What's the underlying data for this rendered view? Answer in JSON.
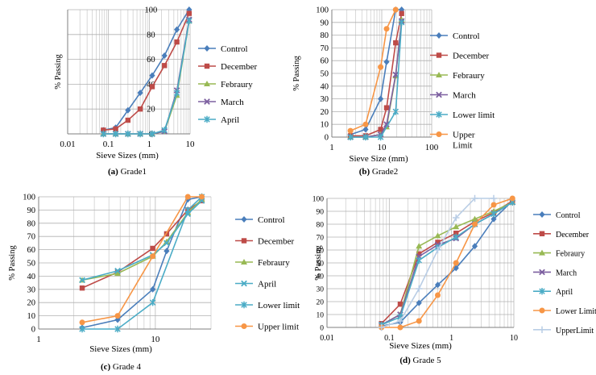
{
  "figure": {
    "title": ""
  },
  "colors": {
    "Control": "#4a7ebb",
    "December": "#be4b48",
    "Febraury": "#98b954",
    "March": "#7d60a0",
    "April": "#4bacc6",
    "Lower limit": "#4bacc6",
    "Upper limit": "#f79646",
    "Lower Limit": "#f79646",
    "UpperLimit": "#b9cde5"
  },
  "chart_data": [
    {
      "type": "line",
      "subtype": "scatter-line",
      "caption": "(a) Grade1",
      "ylabel": "% Passing",
      "xlabel": "Sieve Sizes (mm)",
      "xscale": "log",
      "xlim": [
        0.01,
        10
      ],
      "ylim": [
        0,
        100
      ],
      "xticks": [
        0.01,
        0.1,
        1,
        10
      ],
      "xtick_labels": [
        "0.01",
        "0.1",
        "1",
        "10"
      ],
      "yticks": [
        0,
        20,
        40,
        60,
        80,
        100
      ],
      "ytick_labels": [
        "0",
        "20",
        "40",
        "60",
        "80",
        "100"
      ],
      "legend": "right",
      "grid": true,
      "series": [
        {
          "name": "Control",
          "marker": "diamond",
          "x": [
            0.075,
            0.15,
            0.3,
            0.6,
            1.18,
            2.36,
            4.75,
            9.5
          ],
          "y": [
            3,
            5,
            19,
            33,
            47,
            63,
            84,
            100
          ]
        },
        {
          "name": "December",
          "marker": "square",
          "x": [
            0.075,
            0.15,
            0.3,
            0.6,
            1.18,
            2.36,
            4.75,
            9.5
          ],
          "y": [
            3,
            4,
            11,
            20,
            38,
            55,
            74,
            97
          ]
        },
        {
          "name": "Febraury",
          "marker": "triangle",
          "x": [
            0.075,
            0.15,
            0.3,
            0.6,
            1.18,
            2.36,
            4.75,
            9.5
          ],
          "y": [
            0,
            0,
            0,
            0,
            0,
            2,
            31,
            91
          ]
        },
        {
          "name": "March",
          "marker": "xcross",
          "x": [
            0.075,
            0.15,
            0.3,
            0.6,
            1.18,
            2.36,
            4.75,
            9.5
          ],
          "y": [
            0,
            0,
            0,
            0,
            0,
            2,
            35,
            92
          ]
        },
        {
          "name": "April",
          "marker": "xstar",
          "x": [
            0.075,
            0.15,
            0.3,
            0.6,
            1.18,
            2.36,
            4.75,
            9.5
          ],
          "y": [
            0,
            0,
            0,
            0,
            0,
            3,
            33,
            91
          ]
        }
      ]
    },
    {
      "type": "line",
      "subtype": "scatter-line",
      "caption": "(b) Grade2",
      "ylabel": "% Passing",
      "xlabel": "Sieve Size (mm)",
      "xscale": "log",
      "xlim": [
        1,
        100
      ],
      "ylim": [
        0,
        100
      ],
      "xticks": [
        1,
        10,
        100
      ],
      "xtick_labels": [
        "1",
        "10",
        "100"
      ],
      "yticks": [
        0,
        10,
        20,
        30,
        40,
        50,
        60,
        70,
        80,
        90,
        100
      ],
      "ytick_labels": [
        "0",
        "10",
        "20",
        "30",
        "40",
        "50",
        "60",
        "70",
        "80",
        "90",
        "100"
      ],
      "legend": "right",
      "grid": true,
      "series": [
        {
          "name": "Control",
          "marker": "diamond",
          "x": [
            2.36,
            4.75,
            9.5,
            12.5,
            19,
            25
          ],
          "y": [
            2,
            6,
            30,
            59,
            100,
            100
          ]
        },
        {
          "name": "December",
          "marker": "square",
          "x": [
            2.36,
            4.75,
            9.5,
            12.5,
            19,
            25
          ],
          "y": [
            1,
            1,
            6,
            23,
            74,
            97
          ]
        },
        {
          "name": "Febraury",
          "marker": "triangle",
          "x": [
            2.36,
            4.75,
            9.5,
            12.5,
            19,
            25
          ],
          "y": [
            0,
            0,
            2,
            8,
            48,
            92
          ]
        },
        {
          "name": "March",
          "marker": "xcross",
          "x": [
            2.36,
            4.75,
            9.5,
            12.5,
            19,
            25
          ],
          "y": [
            0,
            0,
            2,
            10,
            49,
            91
          ]
        },
        {
          "name": "Lower limit",
          "marker": "xstar",
          "x": [
            2.36,
            4.75,
            9.5,
            19,
            25
          ],
          "y": [
            0,
            0,
            0,
            20,
            90
          ]
        },
        {
          "name": "Upper limit",
          "marker": "circle",
          "x": [
            2.36,
            4.75,
            9.5,
            12.5,
            19
          ],
          "y": [
            5,
            10,
            55,
            85,
            100
          ]
        }
      ],
      "legend_labels": [
        "Control",
        "December",
        "Febraury",
        "March",
        "Lower limit",
        "Upper\nLimit"
      ]
    },
    {
      "type": "line",
      "subtype": "scatter-line",
      "caption": "(c) Grade 4",
      "ylabel": "% Passing",
      "xlabel": "Sieve Sizes (mm)",
      "xscale": "log",
      "xlim": [
        1,
        30
      ],
      "ylim": [
        0,
        100
      ],
      "xticks": [
        1,
        10
      ],
      "xtick_labels": [
        "1",
        "10"
      ],
      "yticks": [
        0,
        10,
        20,
        30,
        40,
        50,
        60,
        70,
        80,
        90,
        100
      ],
      "ytick_labels": [
        "0",
        "10",
        "20",
        "30",
        "40",
        "50",
        "60",
        "70",
        "80",
        "90",
        "100"
      ],
      "legend": "right",
      "grid": true,
      "series": [
        {
          "name": "Control",
          "marker": "diamond",
          "x": [
            2.36,
            4.75,
            9.5,
            12.5,
            19,
            25
          ],
          "y": [
            1,
            7,
            30,
            59,
            98,
            100
          ]
        },
        {
          "name": "December",
          "marker": "square",
          "x": [
            2.36,
            4.75,
            9.5,
            12.5,
            19,
            25
          ],
          "y": [
            31,
            43,
            61,
            72,
            90,
            97
          ]
        },
        {
          "name": "Febraury",
          "marker": "triangle",
          "x": [
            2.36,
            4.75,
            9.5,
            12.5,
            19,
            25
          ],
          "y": [
            37,
            42,
            55,
            66,
            88,
            98
          ]
        },
        {
          "name": "April",
          "marker": "xcross",
          "x": [
            2.36,
            4.75,
            9.5,
            12.5,
            19,
            25
          ],
          "y": [
            37,
            44,
            56,
            65,
            87,
            97
          ]
        },
        {
          "name": "Lower limit",
          "marker": "xstar",
          "x": [
            2.36,
            4.75,
            9.5,
            19,
            25
          ],
          "y": [
            0,
            0,
            20,
            90,
            100
          ]
        },
        {
          "name": "Upper limit",
          "marker": "circle",
          "x": [
            2.36,
            4.75,
            9.5,
            19,
            25
          ],
          "y": [
            5,
            10,
            55,
            100,
            100
          ]
        }
      ]
    },
    {
      "type": "line",
      "subtype": "scatter-line",
      "caption": "(d) Grade 5",
      "ylabel": "% Passing",
      "xlabel": "Sieve Sizes (mm)",
      "xscale": "log",
      "xlim": [
        0.01,
        10
      ],
      "ylim": [
        0,
        100
      ],
      "xticks": [
        0.01,
        0.1,
        1,
        10
      ],
      "xtick_labels": [
        "0.01",
        "0.1",
        "1",
        "10"
      ],
      "yticks": [
        0,
        10,
        20,
        30,
        40,
        50,
        60,
        70,
        80,
        90,
        100
      ],
      "ytick_labels": [
        "0",
        "10",
        "20",
        "30",
        "40",
        "50",
        "60",
        "70",
        "80",
        "90",
        "100"
      ],
      "legend": "right",
      "grid": true,
      "series": [
        {
          "name": "Control",
          "marker": "diamond",
          "x": [
            0.075,
            0.15,
            0.3,
            0.6,
            1.18,
            2.36,
            4.75,
            9.5
          ],
          "y": [
            1,
            4,
            19,
            33,
            46,
            63,
            84,
            98
          ]
        },
        {
          "name": "December",
          "marker": "square",
          "x": [
            0.075,
            0.15,
            0.3,
            0.6,
            1.18,
            2.36,
            4.75,
            9.5
          ],
          "y": [
            3,
            18,
            57,
            66,
            73,
            82,
            89,
            98
          ]
        },
        {
          "name": "Febraury",
          "marker": "triangle",
          "x": [
            0.075,
            0.15,
            0.3,
            0.6,
            1.18,
            2.36,
            4.75,
            9.5
          ],
          "y": [
            2,
            10,
            63,
            71,
            78,
            84,
            90,
            97
          ]
        },
        {
          "name": "March",
          "marker": "xcross",
          "x": [
            0.075,
            0.15,
            0.3,
            0.6,
            1.18,
            2.36,
            4.75,
            9.5
          ],
          "y": [
            2,
            10,
            55,
            64,
            69,
            80,
            88,
            97
          ]
        },
        {
          "name": "April",
          "marker": "xstar",
          "x": [
            0.075,
            0.15,
            0.3,
            0.6,
            1.18,
            2.36,
            4.75,
            9.5
          ],
          "y": [
            2,
            8,
            52,
            62,
            70,
            80,
            88,
            97
          ]
        },
        {
          "name": "Lower Limit",
          "marker": "circle",
          "x": [
            0.075,
            0.15,
            0.3,
            0.6,
            1.18,
            2.36,
            4.75,
            9.5
          ],
          "y": [
            0,
            0,
            5,
            25,
            50,
            80,
            95,
            100
          ]
        },
        {
          "name": "UpperLimit",
          "marker": "plus",
          "x": [
            0.075,
            0.15,
            0.3,
            0.6,
            1.18,
            2.36,
            4.75
          ],
          "y": [
            0,
            5,
            30,
            60,
            85,
            100,
            100
          ]
        }
      ]
    }
  ]
}
